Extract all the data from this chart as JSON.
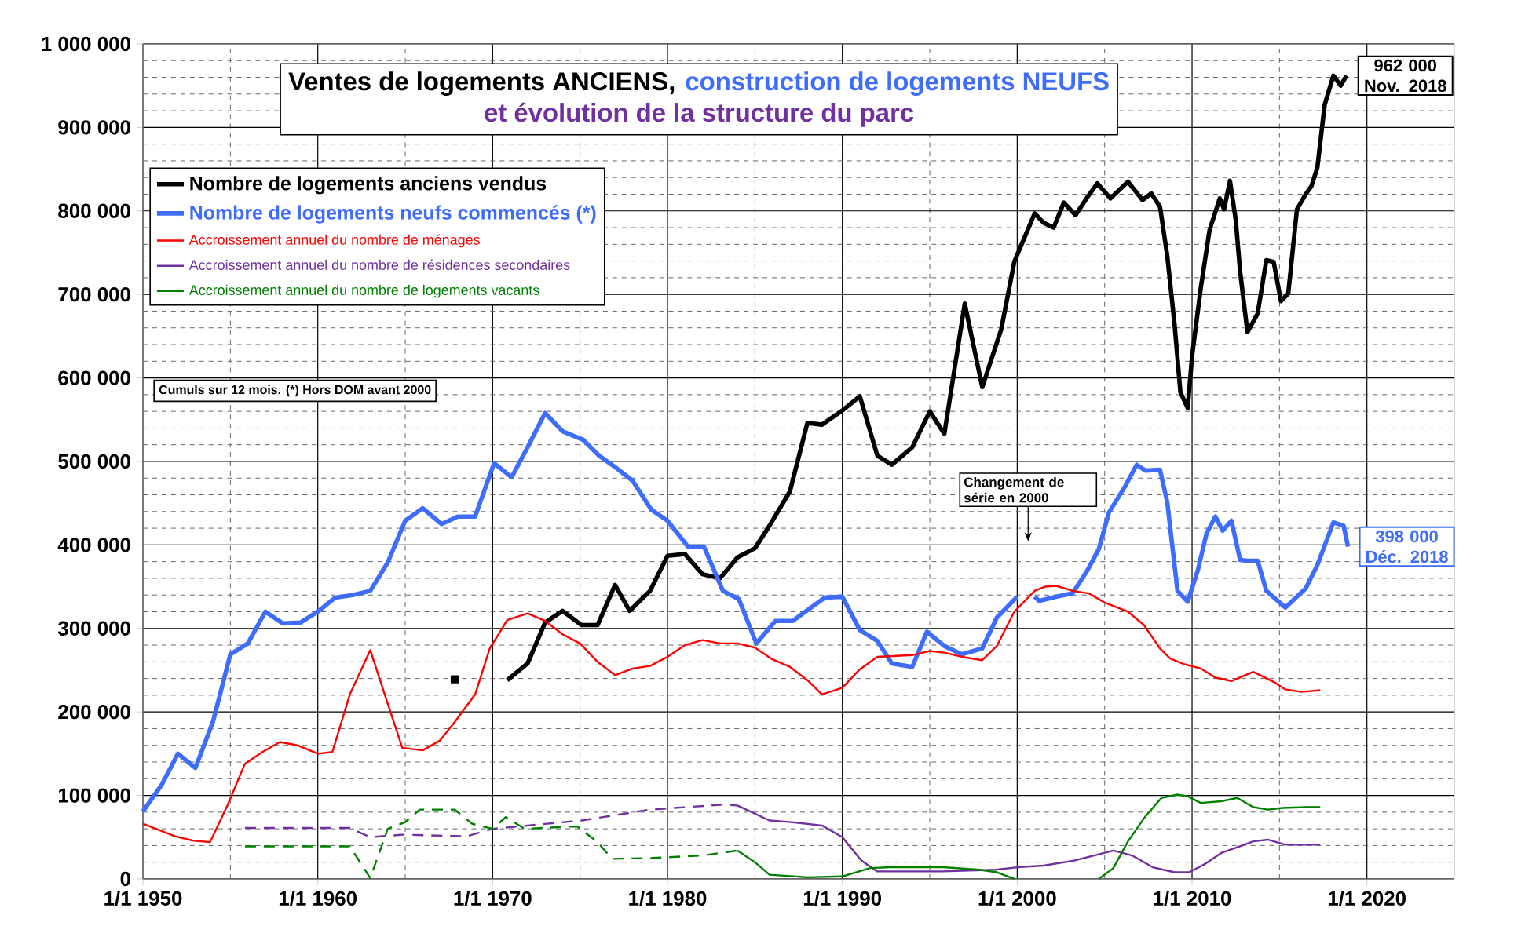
{
  "chart_data": {
    "type": "line",
    "title": "Ventes de logements ANCIENS,",
    "subtitle": "construction de logements NEUFS",
    "annotations": [
      "et évolution de la structure du parc",
      "Cumuls  sur 12 mois.  (*) Hors DOM  avant 2000",
      "Changement de série en 2000",
      {
        "text": "962 000 Nov. 2018",
        "x": "2018-11",
        "y": 962000
      },
      {
        "text": "398 000 Déc. 2018",
        "x": "2018-12",
        "y": 398000
      }
    ],
    "xlim": [
      "1950-01-01",
      "2025-01-01"
    ],
    "ylim": [
      0,
      1000000
    ],
    "xticks": [
      {
        "value": "1950-01-01",
        "label": "1/1 1950"
      },
      {
        "value": "1955-01-01",
        "label": null
      },
      {
        "value": "1960-01-01",
        "label": "1/1 1960"
      },
      {
        "value": "1965-01-01",
        "label": null
      },
      {
        "value": "1970-01-01",
        "label": "1/1 1970"
      },
      {
        "value": "1975-01-01",
        "label": null
      },
      {
        "value": "1980-01-01",
        "label": "1/1 1980"
      },
      {
        "value": "1985-01-01",
        "label": null
      },
      {
        "value": "1990-01-01",
        "label": "1/1 1990"
      },
      {
        "value": "1995-01-01",
        "label": null
      },
      {
        "value": "2000-01-01",
        "label": "1/1 2000"
      },
      {
        "value": "2005-01-01",
        "label": null
      },
      {
        "value": "2010-01-01",
        "label": "1/1 2010"
      },
      {
        "value": "2015-01-01",
        "label": null
      },
      {
        "value": "2020-01-01",
        "label": "1/1 2020"
      }
    ],
    "yticks": [
      {
        "value": 0,
        "label": "0"
      },
      {
        "value": 20000,
        "label": null
      },
      {
        "value": 40000,
        "label": null
      },
      {
        "value": 60000,
        "label": null
      },
      {
        "value": 80000,
        "label": null
      },
      {
        "value": 100000,
        "label": "100 000"
      },
      {
        "value": 120000,
        "label": null
      },
      {
        "value": 140000,
        "label": null
      },
      {
        "value": 160000,
        "label": null
      },
      {
        "value": 180000,
        "label": null
      },
      {
        "value": 200000,
        "label": "200 000"
      },
      {
        "value": 220000,
        "label": null
      },
      {
        "value": 240000,
        "label": null
      },
      {
        "value": 260000,
        "label": null
      },
      {
        "value": 280000,
        "label": null
      },
      {
        "value": 300000,
        "label": "300 000"
      },
      {
        "value": 320000,
        "label": null
      },
      {
        "value": 340000,
        "label": null
      },
      {
        "value": 360000,
        "label": null
      },
      {
        "value": 380000,
        "label": null
      },
      {
        "value": 400000,
        "label": "400 000"
      },
      {
        "value": 420000,
        "label": null
      },
      {
        "value": 440000,
        "label": null
      },
      {
        "value": 460000,
        "label": null
      },
      {
        "value": 480000,
        "label": null
      },
      {
        "value": 500000,
        "label": "500 000"
      },
      {
        "value": 520000,
        "label": null
      },
      {
        "value": 540000,
        "label": null
      },
      {
        "value": 560000,
        "label": null
      },
      {
        "value": 580000,
        "label": null
      },
      {
        "value": 600000,
        "label": "600 000"
      },
      {
        "value": 620000,
        "label": null
      },
      {
        "value": 640000,
        "label": null
      },
      {
        "value": 660000,
        "label": null
      },
      {
        "value": 680000,
        "label": null
      },
      {
        "value": 700000,
        "label": "700 000"
      },
      {
        "value": 720000,
        "label": null
      },
      {
        "value": 740000,
        "label": null
      },
      {
        "value": 760000,
        "label": null
      },
      {
        "value": 780000,
        "label": null
      },
      {
        "value": 800000,
        "label": "800 000"
      },
      {
        "value": 820000,
        "label": null
      },
      {
        "value": 840000,
        "label": null
      },
      {
        "value": 860000,
        "label": null
      },
      {
        "value": 880000,
        "label": null
      },
      {
        "value": 900000,
        "label": "900 000"
      },
      {
        "value": 920000,
        "label": null
      },
      {
        "value": 940000,
        "label": null
      },
      {
        "value": 960000,
        "label": null
      },
      {
        "value": 980000,
        "label": null
      },
      {
        "value": 1000000,
        "label": "1 000 000"
      }
    ],
    "grid": true,
    "legend": "top left",
    "series": [
      {
        "name": "Nombre de logements anciens vendus",
        "color": "#000000",
        "line_style": "solid",
        "x": [
          "1970-11",
          "1972-01",
          "1973-01",
          "1974-01",
          "1975-02",
          "1976-01",
          "1977-01",
          "1977-11",
          "1979-01",
          "1980-01",
          "1981-01",
          "1982-01",
          "1983-01",
          "1984-01",
          "1985-01",
          "1985-11",
          "1987-01",
          "1988-01",
          "1988-11",
          "1990-01",
          "1991-01",
          "1992-01",
          "1992-11",
          "1994-01",
          "1995-01",
          "1995-11",
          "1997-01",
          "1998-01",
          "1999-02",
          "1999-11",
          "2001-01",
          "2001-07",
          "2002-02",
          "2002-09",
          "2003-05",
          "2004-01",
          "2004-08",
          "2005-05",
          "2006-05",
          "2007-03",
          "2007-09",
          "2008-03",
          "2008-08",
          "2009-01",
          "2009-05",
          "2009-10",
          "2010-01",
          "2010-07",
          "2011-01",
          "2011-08",
          "2011-11",
          "2012-03",
          "2012-07",
          "2012-10",
          "2013-03",
          "2013-10",
          "2014-04",
          "2014-09",
          "2015-02",
          "2015-07",
          "2016-01",
          "2016-07",
          "2016-11",
          "2017-03",
          "2017-08",
          "2018-02",
          "2018-07",
          "2018-11"
        ],
        "values": [
          238000,
          258000,
          307000,
          321000,
          304000,
          304000,
          352000,
          321000,
          345000,
          387000,
          389000,
          365000,
          360000,
          385000,
          396000,
          423000,
          464000,
          546000,
          544000,
          561000,
          578000,
          507000,
          496000,
          517000,
          560000,
          533000,
          689000,
          589000,
          658000,
          739000,
          797000,
          786000,
          780000,
          810000,
          795000,
          816000,
          833000,
          815000,
          835000,
          813000,
          821000,
          805000,
          746000,
          664000,
          583000,
          564000,
          626000,
          708000,
          777000,
          815000,
          802000,
          836000,
          789000,
          727000,
          655000,
          677000,
          741000,
          739000,
          692000,
          701000,
          802000,
          820000,
          830000,
          852000,
          927000,
          962000,
          950000,
          962000
        ]
      },
      {
        "name": "Nombre de logements neufs commencés (*)",
        "color": "#3d6cff",
        "line_style": "solid",
        "x": [
          "1950-01",
          "1951-02",
          "1952-01",
          "1953-01",
          "1954-01",
          "1955-01",
          "1956-01",
          "1957-01",
          "1958-01",
          "1959-01",
          "1960-01",
          "1961-01",
          "1962-01",
          "1963-01",
          "1964-01",
          "1965-01",
          "1966-01",
          "1967-02",
          "1968-01",
          "1969-01",
          "1970-02",
          "1971-02",
          "1972-01",
          "1973-01",
          "1974-01",
          "1975-03",
          "1976-02",
          "1977-02",
          "1978-01",
          "1979-02",
          "1980-01",
          "1981-03",
          "1982-02",
          "1983-03",
          "1984-02",
          "1985-02",
          "1986-03",
          "1987-03",
          "1988-02",
          "1989-01",
          "1990-01",
          "1991-01",
          "1992-01",
          "1992-11",
          "1994-01",
          "1994-11",
          "1995-11",
          "1996-11",
          "1998-01",
          "1998-11",
          "2000-01",
          "2000-07",
          "2001-01",
          "2001-04",
          "2002-04",
          "2003-03",
          "2004-01",
          "2004-09",
          "2005-04",
          "2006-03",
          "2006-11",
          "2007-05",
          "2008-03",
          "2008-08",
          "2009-03",
          "2009-10",
          "2010-05",
          "2010-11",
          "2011-05",
          "2011-10",
          "2012-04",
          "2012-10",
          "2013-03",
          "2013-10",
          "2014-04",
          "2015-05",
          "2016-07",
          "2017-03",
          "2018-02",
          "2018-09",
          "2018-12"
        ],
        "values": [
          81000,
          113000,
          150000,
          133000,
          188000,
          269000,
          282000,
          320000,
          306000,
          307000,
          320000,
          337000,
          340000,
          345000,
          379000,
          429000,
          444000,
          425000,
          434000,
          434000,
          498000,
          481000,
          517000,
          558000,
          536000,
          526000,
          507000,
          492000,
          477000,
          442000,
          429000,
          398000,
          398000,
          345000,
          335000,
          282000,
          309000,
          309000,
          323000,
          337000,
          338000,
          298000,
          285000,
          258000,
          254000,
          296000,
          279000,
          269000,
          276000,
          313000,
          338000,
          null,
          338000,
          333000,
          338000,
          342000,
          369000,
          395000,
          439000,
          470000,
          496000,
          489000,
          490000,
          451000,
          345000,
          332000,
          370000,
          414000,
          434000,
          417000,
          429000,
          382000,
          381000,
          381000,
          345000,
          325000,
          348000,
          376000,
          427000,
          423000,
          398000
        ]
      },
      {
        "name": "Accroissement annuel du nombre de ménages",
        "color": "#ff0000",
        "line_style": "solid",
        "x": [
          "1950-01",
          "1951-11",
          "1952-11",
          "1953-11",
          "1954-11",
          "1955-11",
          "1956-11",
          "1957-11",
          "1958-11",
          "1960-01",
          "1960-11",
          "1961-11",
          "1963-01",
          "1964-01",
          "1964-11",
          "1966-01",
          "1967-01",
          "1967-11",
          "1969-01",
          "1969-11",
          "1970-11",
          "1972-01",
          "1973-01",
          "1974-01",
          "1975-01",
          "1976-01",
          "1977-01",
          "1978-01",
          "1979-01",
          "1980-01",
          "1981-01",
          "1982-01",
          "1983-01",
          "1984-01",
          "1985-01",
          "1986-01",
          "1987-01",
          "1988-01",
          "1988-11",
          "1990-01",
          "1991-01",
          "1992-01",
          "1994-01",
          "1995-01",
          "1995-11",
          "1996-11",
          "1998-01",
          "1998-11",
          "1999-11",
          "2001-01",
          "2001-08",
          "2002-04",
          "2003-03",
          "2004-02",
          "2005-01",
          "2006-05",
          "2007-04",
          "2008-03",
          "2008-10",
          "2009-08",
          "2010-07",
          "2011-05",
          "2012-04",
          "2013-07",
          "2014-10",
          "2015-05",
          "2016-04",
          "2017-05"
        ],
        "values": [
          66000,
          51000,
          46000,
          44000,
          88000,
          138000,
          152000,
          164000,
          160000,
          150000,
          152000,
          221000,
          274000,
          210000,
          157000,
          154000,
          166000,
          188000,
          221000,
          276000,
          310000,
          318000,
          309000,
          293000,
          282000,
          260000,
          244000,
          252000,
          255000,
          266000,
          280000,
          286000,
          282000,
          282000,
          277000,
          263000,
          254000,
          238000,
          221000,
          229000,
          251000,
          266000,
          268000,
          273000,
          271000,
          266000,
          262000,
          279000,
          320000,
          345000,
          350000,
          351000,
          345000,
          342000,
          331000,
          320000,
          304000,
          276000,
          264000,
          257000,
          252000,
          241000,
          237000,
          248000,
          235000,
          227000,
          224000,
          226000
        ]
      },
      {
        "name": "Accroissement annuel du nombre de résidences secondaires",
        "color": "#7030a0",
        "line_style": "solid",
        "x": [
          "1984-01",
          "1985-11",
          "1987-02",
          "1988-11",
          "1990-01",
          "1991-02",
          "1992-01",
          "1995-10",
          "1998-10",
          "2000-01",
          "2001-07",
          "2003-04",
          "2004-10",
          "2005-07",
          "2006-08",
          "2007-10",
          "2009-01",
          "2009-11",
          "2010-10",
          "2011-09",
          "2012-08",
          "2013-07",
          "2014-05",
          "2015-05",
          "2017-05"
        ],
        "values": [
          88000,
          70000,
          68000,
          64000,
          50000,
          22000,
          9000,
          9000,
          11000,
          14000,
          16000,
          22000,
          30000,
          34000,
          28000,
          14000,
          8000,
          8000,
          18000,
          31000,
          38000,
          45000,
          47000,
          41000,
          41000
        ]
      },
      {
        "name": "Accroissement annuel du nombre de logements vacants",
        "color": "#008000",
        "line_style": "solid",
        "x": [
          "1984-01",
          "1985-01",
          "1985-11",
          "1988-01",
          "1990-01",
          "1991-08",
          "1992-10",
          "1995-10",
          "1997-11",
          "1998-11",
          "1999-11",
          "2002-01",
          "2004-09",
          "2005-07",
          "2006-05",
          "2007-05",
          "2008-04",
          "2009-03",
          "2009-10",
          "2010-07",
          "2011-09",
          "2012-08",
          "2013-07",
          "2014-05",
          "2015-03",
          "2016-07",
          "2017-05"
        ],
        "values": [
          34000,
          20000,
          5000,
          2000,
          3000,
          13000,
          14000,
          14000,
          11000,
          8000,
          0,
          null,
          0,
          13000,
          45000,
          75000,
          97000,
          101000,
          99000,
          91000,
          93000,
          97000,
          86000,
          83000,
          85000,
          86000,
          86000
        ]
      },
      {
        "color": "#7030a0",
        "line_style": "dashed",
        "x": [
          "1955-11",
          "1961-11",
          "1963-01",
          "1964-11",
          "1968-07",
          "1970-01",
          "1975-02",
          "1979-01",
          "1983-03",
          "1984-01"
        ],
        "values": [
          61000,
          61000,
          50000,
          53000,
          51000,
          60000,
          70000,
          83000,
          89000,
          88000
        ]
      },
      {
        "color": "#008000",
        "line_style": "dashed",
        "x": [
          "1955-11",
          "1961-11",
          "1963-01",
          "1964-01",
          "1965-01",
          "1965-11",
          "1967-11",
          "1968-11",
          "1970-01",
          "1970-10",
          "1971-11",
          "1974-11",
          "1976-01",
          "1976-11",
          "1979-01",
          "1982-01",
          "1984-01"
        ],
        "values": [
          39000,
          39000,
          1000,
          60000,
          68000,
          83000,
          83000,
          66000,
          60000,
          74000,
          60000,
          63000,
          44000,
          24000,
          25000,
          28000,
          34000
        ]
      },
      {
        "color": "#000000",
        "type": "scatter",
        "marker": "square",
        "x": [
          "1967-11"
        ],
        "values": [
          239000
        ]
      }
    ]
  }
}
